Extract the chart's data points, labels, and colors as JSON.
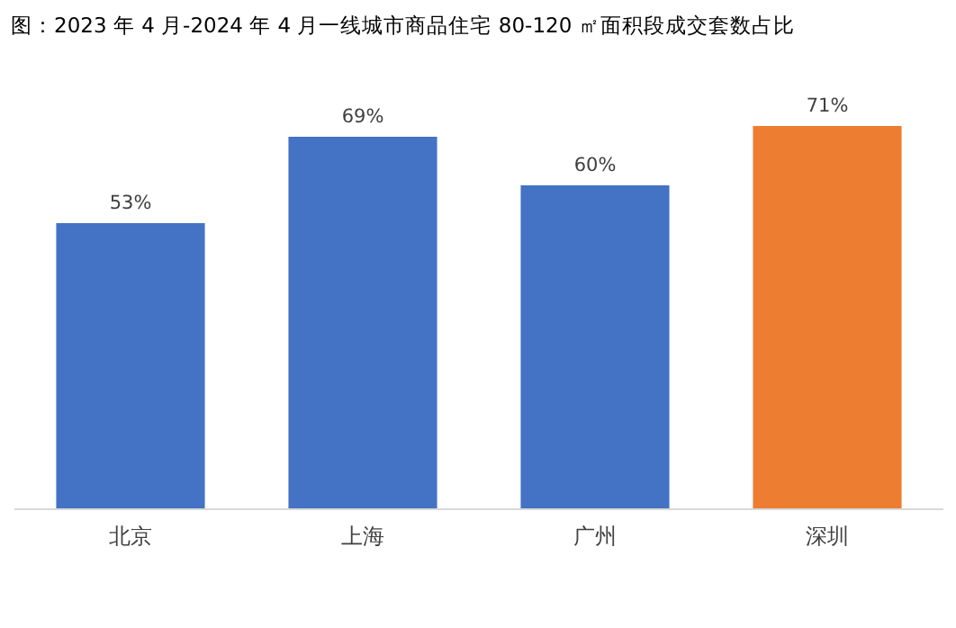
{
  "chart_data": {
    "type": "bar",
    "title": "图：2023 年 4 月-2024 年 4 月一线城市商品住宅 80-120 ㎡面积段成交套数占比",
    "categories": [
      "北京",
      "上海",
      "广州",
      "深圳"
    ],
    "values": [
      53,
      69,
      60,
      71
    ],
    "colors": [
      "#4472c4",
      "#4472c4",
      "#4472c4",
      "#ed7d31"
    ],
    "value_labels": [
      "53%",
      "69%",
      "60%",
      "71%"
    ]
  }
}
